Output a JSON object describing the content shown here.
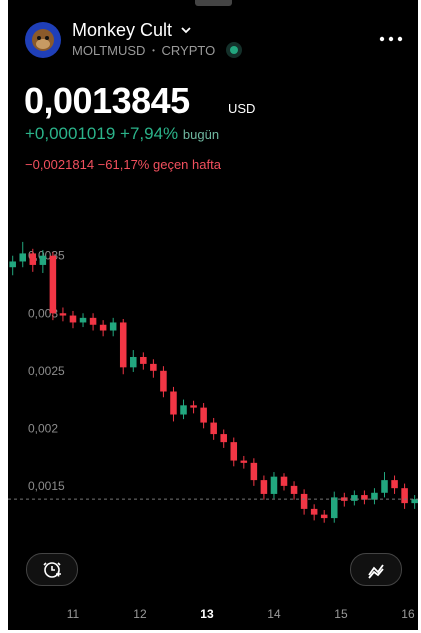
{
  "header": {
    "name": "Monkey Cult",
    "symbol": "MOLTMUSD",
    "separator": "•",
    "market": "CRYPTO",
    "price": "0,0013845",
    "currency": "USD",
    "change_day": "+0,0001019",
    "change_day_pct": "+7,94%",
    "change_day_period": "bugün",
    "change_week": "−0,0021814",
    "change_week_pct": "−61,17%",
    "change_week_period": "geçen hafta"
  },
  "chart_data": {
    "type": "candlestick",
    "x": [
      10.1,
      10.25,
      10.4,
      10.55,
      10.7,
      10.85,
      11,
      11.15,
      11.3,
      11.45,
      11.6,
      11.75,
      11.9,
      12.05,
      12.2,
      12.35,
      12.5,
      12.65,
      12.8,
      12.95,
      13.1,
      13.25,
      13.4,
      13.55,
      13.7,
      13.85,
      14,
      14.15,
      14.3,
      14.45,
      14.6,
      14.75,
      14.9,
      15.05,
      15.2,
      15.35,
      15.5,
      15.65,
      15.8,
      15.95,
      16.1
    ],
    "open": [
      0.0034,
      0.00345,
      0.00352,
      0.00342,
      0.0035,
      0.003,
      0.00298,
      0.00292,
      0.00296,
      0.0029,
      0.00285,
      0.00292,
      0.00253,
      0.00262,
      0.00256,
      0.0025,
      0.00232,
      0.00212,
      0.0022,
      0.00218,
      0.00205,
      0.00195,
      0.00188,
      0.00172,
      0.0017,
      0.00155,
      0.00143,
      0.00158,
      0.0015,
      0.00143,
      0.0013,
      0.00125,
      0.00122,
      0.0014,
      0.00137,
      0.00142,
      0.00138,
      0.00144,
      0.00155,
      0.00148,
      0.00135
    ],
    "high": [
      0.0035,
      0.00362,
      0.00356,
      0.00355,
      0.00353,
      0.00305,
      0.00302,
      0.003,
      0.003,
      0.00294,
      0.00296,
      0.00295,
      0.00268,
      0.00266,
      0.0026,
      0.00254,
      0.00236,
      0.00225,
      0.00224,
      0.00222,
      0.00209,
      0.00199,
      0.00192,
      0.00176,
      0.00174,
      0.00159,
      0.00162,
      0.00161,
      0.00154,
      0.00147,
      0.00134,
      0.00129,
      0.00145,
      0.00144,
      0.00146,
      0.00146,
      0.00148,
      0.00162,
      0.00159,
      0.00152,
      0.00142
    ],
    "low": [
      0.00333,
      0.0034,
      0.00336,
      0.00335,
      0.00294,
      0.00293,
      0.00287,
      0.00288,
      0.00285,
      0.0028,
      0.0028,
      0.00247,
      0.00249,
      0.00251,
      0.00244,
      0.00227,
      0.00206,
      0.00208,
      0.00213,
      0.002,
      0.0019,
      0.00183,
      0.00167,
      0.00165,
      0.0015,
      0.00138,
      0.00139,
      0.00146,
      0.00138,
      0.00125,
      0.0012,
      0.00118,
      0.00118,
      0.00132,
      0.00133,
      0.00134,
      0.00134,
      0.0014,
      0.00143,
      0.0013,
      0.0013
    ],
    "close": [
      0.00345,
      0.00352,
      0.00342,
      0.0035,
      0.003,
      0.00298,
      0.00292,
      0.00296,
      0.0029,
      0.00285,
      0.00292,
      0.00253,
      0.00262,
      0.00256,
      0.0025,
      0.00232,
      0.00212,
      0.0022,
      0.00218,
      0.00205,
      0.00195,
      0.00188,
      0.00172,
      0.0017,
      0.00155,
      0.00143,
      0.00158,
      0.0015,
      0.00143,
      0.0013,
      0.00125,
      0.00122,
      0.0014,
      0.00137,
      0.00142,
      0.00138,
      0.00144,
      0.00155,
      0.00148,
      0.00135,
      0.0013845
    ],
    "up_color": "#22a77f",
    "down_color": "#f23645",
    "xlim": [
      10.03,
      16.15
    ],
    "xticks": [
      11,
      12,
      13,
      14,
      15,
      16
    ],
    "highlight_xtick": 13,
    "ylim": [
      0.00116,
      0.00368
    ],
    "yticks": [
      {
        "value": 0.0015,
        "label": "0,0015"
      },
      {
        "value": 0.002,
        "label": "0,002"
      },
      {
        "value": 0.0025,
        "label": "0,0025"
      },
      {
        "value": 0.003,
        "label": "0,003"
      },
      {
        "value": 0.0035,
        "label": "0,0035"
      }
    ],
    "grid": false,
    "last_price_line": true
  }
}
